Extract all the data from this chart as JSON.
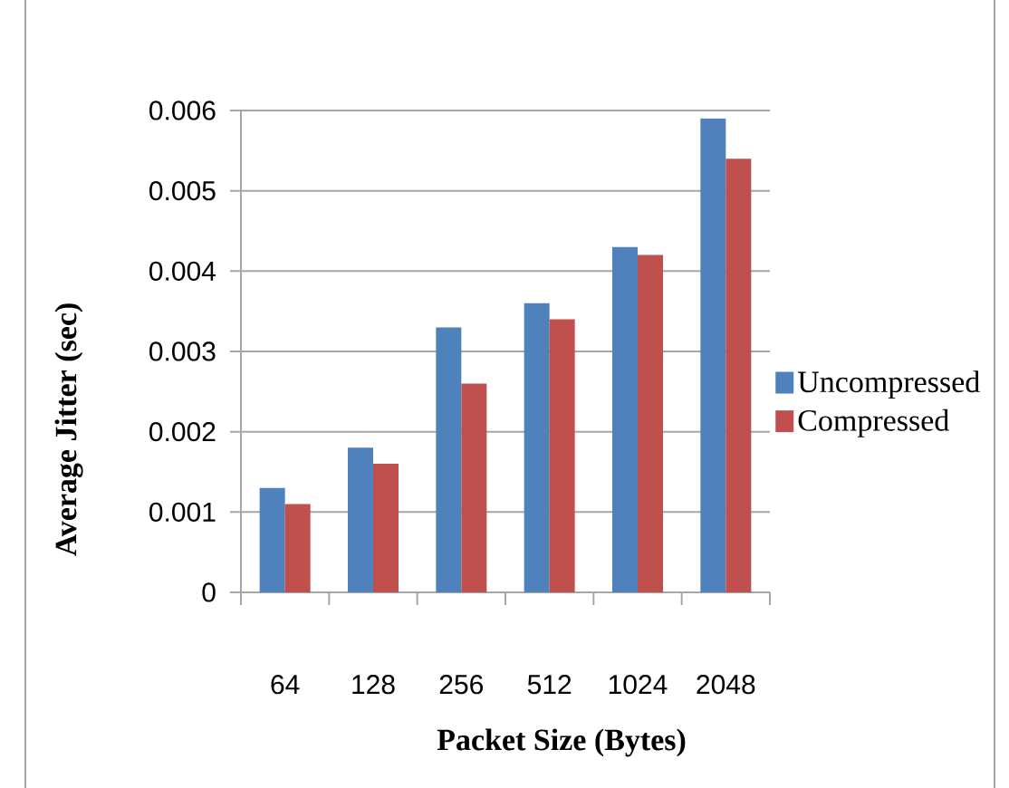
{
  "chart_data": {
    "type": "bar",
    "xlabel": "Packet Size (Bytes)",
    "ylabel": "Average Jitter (sec)",
    "categories": [
      "64",
      "128",
      "256",
      "512",
      "1024",
      "2048"
    ],
    "series": [
      {
        "name": "Uncompressed",
        "color": "#4f81bd",
        "values": [
          0.0013,
          0.0018,
          0.0033,
          0.0036,
          0.0043,
          0.0059
        ]
      },
      {
        "name": "Compressed",
        "color": "#c0504d",
        "values": [
          0.0011,
          0.0016,
          0.0026,
          0.0034,
          0.0042,
          0.0054
        ]
      }
    ],
    "ylim": [
      0,
      0.006
    ],
    "yticks": [
      0,
      0.001,
      0.002,
      0.003,
      0.004,
      0.005,
      0.006
    ],
    "grid": "y",
    "legend": "right"
  }
}
